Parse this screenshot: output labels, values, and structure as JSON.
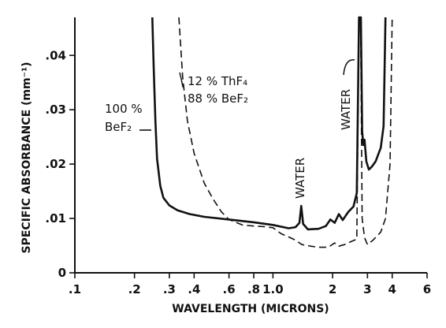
{
  "chart_data": {
    "type": "line",
    "xlabel": "WAVELENGTH  (MICRONS)",
    "ylabel": "SPECIFIC ABSORBANCE (mm⁻¹)",
    "xscale": "log",
    "xlim": [
      0.1,
      6
    ],
    "ylim": [
      0,
      0.047
    ],
    "x_ticks": [
      {
        "value": 0.1,
        "label": ".1"
      },
      {
        "value": 0.2,
        "label": ".2"
      },
      {
        "value": 0.3,
        "label": ".3"
      },
      {
        "value": 0.4,
        "label": ".4"
      },
      {
        "value": 0.6,
        "label": ".6"
      },
      {
        "value": 0.8,
        "label": ".8"
      },
      {
        "value": 1.0,
        "label": "1.0"
      },
      {
        "value": 2,
        "label": "2"
      },
      {
        "value": 3,
        "label": "3"
      },
      {
        "value": 4,
        "label": "4"
      },
      {
        "value": 6,
        "label": "6"
      }
    ],
    "y_ticks": [
      {
        "value": 0,
        "label": "0"
      },
      {
        "value": 0.01,
        "label": ".01"
      },
      {
        "value": 0.02,
        "label": ".02"
      },
      {
        "value": 0.03,
        "label": ".03"
      },
      {
        "value": 0.04,
        "label": ".04"
      }
    ],
    "grid": false,
    "series": [
      {
        "name": "100 % BeF2",
        "style": "solid",
        "points": [
          [
            0.246,
            0.047
          ],
          [
            0.25,
            0.038
          ],
          [
            0.255,
            0.028
          ],
          [
            0.26,
            0.021
          ],
          [
            0.27,
            0.016
          ],
          [
            0.28,
            0.0138
          ],
          [
            0.3,
            0.0124
          ],
          [
            0.33,
            0.0115
          ],
          [
            0.38,
            0.0108
          ],
          [
            0.45,
            0.0103
          ],
          [
            0.6,
            0.0098
          ],
          [
            0.8,
            0.0093
          ],
          [
            1.0,
            0.0088
          ],
          [
            1.2,
            0.0082
          ],
          [
            1.3,
            0.0084
          ],
          [
            1.36,
            0.0092
          ],
          [
            1.39,
            0.0123
          ],
          [
            1.42,
            0.009
          ],
          [
            1.5,
            0.008
          ],
          [
            1.7,
            0.0081
          ],
          [
            1.85,
            0.0086
          ],
          [
            1.95,
            0.0098
          ],
          [
            2.05,
            0.0092
          ],
          [
            2.15,
            0.0108
          ],
          [
            2.25,
            0.0097
          ],
          [
            2.4,
            0.0112
          ],
          [
            2.55,
            0.0122
          ],
          [
            2.65,
            0.0147
          ],
          [
            2.72,
            0.047
          ],
          [
            2.78,
            0.047
          ],
          [
            2.82,
            0.026
          ],
          [
            2.86,
            0.0235
          ],
          [
            2.9,
            0.0245
          ],
          [
            2.96,
            0.0205
          ],
          [
            3.05,
            0.019
          ],
          [
            3.15,
            0.0195
          ],
          [
            3.3,
            0.0205
          ],
          [
            3.5,
            0.023
          ],
          [
            3.62,
            0.027
          ],
          [
            3.7,
            0.047
          ]
        ]
      },
      {
        "name": "12 % ThF4 88 % BeF2",
        "style": "dashed",
        "points": [
          [
            0.335,
            0.047
          ],
          [
            0.35,
            0.036
          ],
          [
            0.37,
            0.028
          ],
          [
            0.4,
            0.022
          ],
          [
            0.45,
            0.0165
          ],
          [
            0.5,
            0.0135
          ],
          [
            0.55,
            0.0112
          ],
          [
            0.6,
            0.0098
          ],
          [
            0.7,
            0.0088
          ],
          [
            0.8,
            0.0086
          ],
          [
            0.9,
            0.0085
          ],
          [
            1.0,
            0.0083
          ],
          [
            1.1,
            0.0072
          ],
          [
            1.2,
            0.0066
          ],
          [
            1.3,
            0.006
          ],
          [
            1.4,
            0.0052
          ],
          [
            1.55,
            0.0049
          ],
          [
            1.7,
            0.0047
          ],
          [
            1.9,
            0.0047
          ],
          [
            2.05,
            0.0055
          ],
          [
            2.15,
            0.0049
          ],
          [
            2.3,
            0.0052
          ],
          [
            2.5,
            0.0058
          ],
          [
            2.65,
            0.0062
          ],
          [
            2.72,
            0.047
          ],
          [
            2.77,
            0.047
          ],
          [
            2.82,
            0.01
          ],
          [
            2.9,
            0.0065
          ],
          [
            3.0,
            0.0052
          ],
          [
            3.2,
            0.006
          ],
          [
            3.5,
            0.0075
          ],
          [
            3.7,
            0.01
          ],
          [
            3.9,
            0.02
          ],
          [
            4.0,
            0.047
          ]
        ]
      }
    ],
    "annotations": [
      {
        "lines": [
          "100 %",
          "BeF₂"
        ]
      },
      {
        "lines": [
          "12 % ThF₄",
          "88 % BeF₂"
        ]
      },
      {
        "text": "WATER"
      },
      {
        "text": "WATER"
      }
    ]
  }
}
